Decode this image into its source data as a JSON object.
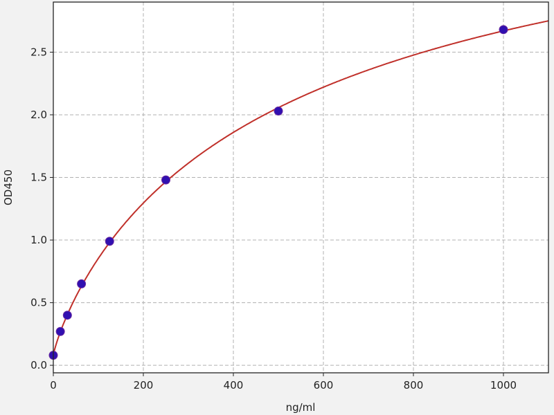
{
  "chart_data": {
    "type": "scatter",
    "title": "",
    "xlabel": "ng/ml",
    "ylabel": "OD450",
    "xlim": [
      0,
      1100
    ],
    "ylim": [
      -0.06,
      2.9
    ],
    "xticks": [
      0,
      200,
      400,
      600,
      800,
      1000
    ],
    "xtick_labels": [
      "0",
      "200",
      "400",
      "600",
      "800",
      "1000"
    ],
    "yticks": [
      0.0,
      0.5,
      1.0,
      1.5,
      2.0,
      2.5
    ],
    "ytick_labels": [
      "0.0",
      "0.5",
      "1.0",
      "1.5",
      "2.0",
      "2.5"
    ],
    "grid": true,
    "series": [
      {
        "type": "scatter",
        "x": [
          0,
          15.6,
          31.25,
          62.5,
          125,
          250,
          500,
          1000
        ],
        "y": [
          0.08,
          0.27,
          0.4,
          0.65,
          0.99,
          1.48,
          2.03,
          2.68
        ],
        "color": "#3010b0"
      },
      {
        "type": "line",
        "fit": "four-parameter logistic curve",
        "color": "#c0302a"
      }
    ],
    "colors": {
      "background": "#f2f2f2",
      "plot_background": "#ffffff",
      "grid": "#b0b0b0"
    }
  }
}
